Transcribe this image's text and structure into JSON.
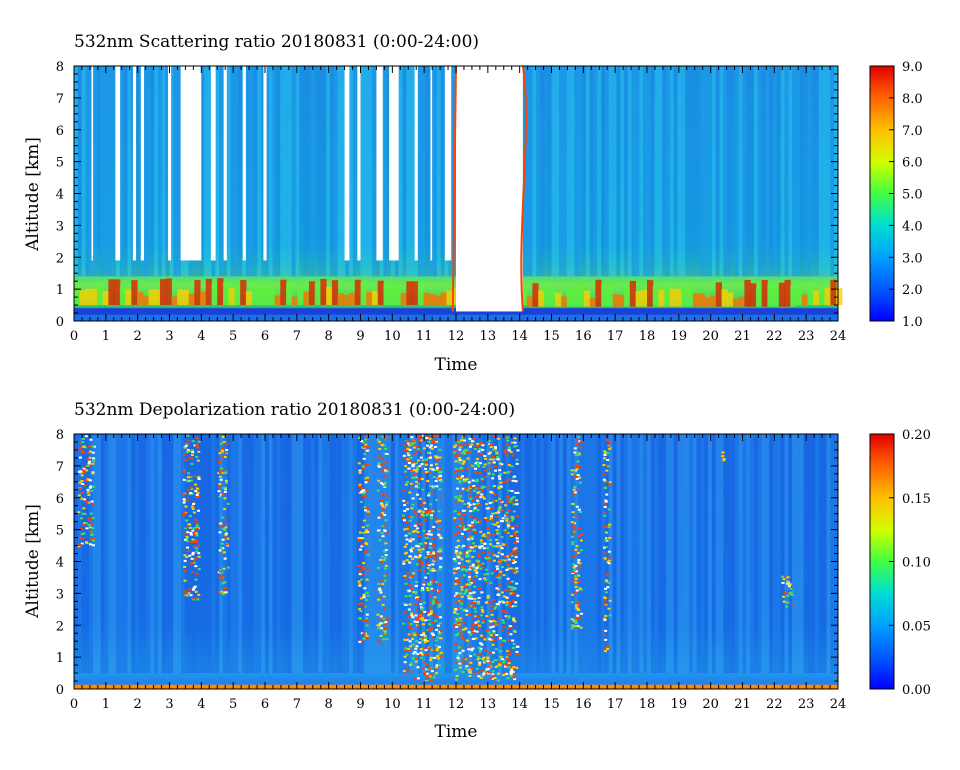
{
  "chart_data": [
    {
      "type": "heatmap",
      "title": "532nm Scattering ratio  20180831 (0:00-24:00)",
      "xlabel": "Time",
      "ylabel": "Altitude [km]",
      "xlim": [
        0,
        24
      ],
      "ylim": [
        0,
        8
      ],
      "x_ticks": [
        "0",
        "1",
        "2",
        "3",
        "4",
        "5",
        "6",
        "7",
        "8",
        "9",
        "10",
        "11",
        "12",
        "13",
        "14",
        "15",
        "16",
        "17",
        "18",
        "19",
        "20",
        "21",
        "22",
        "23",
        "24"
      ],
      "y_ticks": [
        "0",
        "1",
        "2",
        "3",
        "4",
        "5",
        "6",
        "7",
        "8"
      ],
      "colorbar": {
        "min": 1.0,
        "max": 9.0,
        "ticks": [
          "1.0",
          "2.0",
          "3.0",
          "4.0",
          "5.0",
          "6.0",
          "7.0",
          "8.0",
          "9.0"
        ]
      },
      "white_columns": [
        [
          0.55,
          0.6
        ],
        [
          1.3,
          1.45
        ],
        [
          1.85,
          1.95
        ],
        [
          2.1,
          2.2
        ],
        [
          2.95,
          3.05
        ],
        [
          3.35,
          4.0
        ],
        [
          4.3,
          4.45
        ],
        [
          4.7,
          4.8
        ],
        [
          5.3,
          5.4
        ],
        [
          5.95,
          6.05
        ],
        [
          8.5,
          8.65
        ],
        [
          8.9,
          9.0
        ],
        [
          9.5,
          9.7
        ],
        [
          9.9,
          10.2
        ],
        [
          10.7,
          10.8
        ],
        [
          11.2,
          11.25
        ],
        [
          11.65,
          11.85
        ],
        [
          12.1,
          12.8
        ],
        [
          13.15,
          13.6
        ]
      ]
    },
    {
      "type": "heatmap",
      "title": "532nm Depolarization ratio  20180831 (0:00-24:00)",
      "xlabel": "Time",
      "ylabel": "Altitude [km]",
      "xlim": [
        0,
        24
      ],
      "ylim": [
        0,
        8
      ],
      "x_ticks": [
        "0",
        "1",
        "2",
        "3",
        "4",
        "5",
        "6",
        "7",
        "8",
        "9",
        "10",
        "11",
        "12",
        "13",
        "14",
        "15",
        "16",
        "17",
        "18",
        "19",
        "20",
        "21",
        "22",
        "23",
        "24"
      ],
      "y_ticks": [
        "0",
        "1",
        "2",
        "3",
        "4",
        "5",
        "6",
        "7",
        "8"
      ],
      "colorbar": {
        "min": 0.0,
        "max": 0.2,
        "ticks": [
          "0.00",
          "0.05",
          "0.10",
          "0.15",
          "0.20"
        ]
      }
    }
  ]
}
